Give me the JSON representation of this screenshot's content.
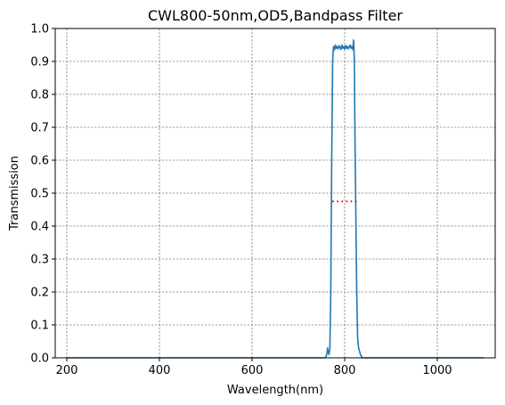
{
  "chart_data": {
    "type": "line",
    "title": "CWL800-50nm,OD5,Bandpass Filter",
    "xlabel": "Wavelength(nm)",
    "ylabel": "Transmission",
    "xlim": [
      175,
      1125
    ],
    "ylim": [
      0,
      1.0
    ],
    "x_ticks": [
      200,
      400,
      600,
      800,
      1000
    ],
    "y_ticks": [
      0.0,
      0.1,
      0.2,
      0.3,
      0.4,
      0.5,
      0.6,
      0.7,
      0.8,
      0.9,
      1.0
    ],
    "x_tick_labels": [
      "200",
      "400",
      "600",
      "800",
      "1000"
    ],
    "y_tick_labels": [
      "0.0",
      "0.1",
      "0.2",
      "0.3",
      "0.4",
      "0.5",
      "0.6",
      "0.7",
      "0.8",
      "0.9",
      "1.0"
    ],
    "grid": true,
    "series": [
      {
        "color": "#1f77b4",
        "style": "solid",
        "x": [
          200,
          400,
          600,
          758,
          760,
          762,
          763,
          764,
          766,
          768,
          770,
          772,
          774,
          775,
          776,
          778,
          780,
          782,
          784,
          786,
          788,
          790,
          792,
          794,
          796,
          798,
          800,
          802,
          804,
          806,
          808,
          810,
          812,
          814,
          816,
          818,
          819,
          820,
          821,
          822,
          824,
          826,
          828,
          830,
          832,
          834,
          836,
          838,
          840,
          842,
          860,
          900,
          1000,
          1100
        ],
        "y": [
          0.0,
          0.0,
          0.0,
          0.0,
          0.005,
          0.015,
          0.03,
          0.02,
          0.01,
          0.03,
          0.2,
          0.6,
          0.9,
          0.93,
          0.945,
          0.935,
          0.95,
          0.94,
          0.945,
          0.938,
          0.948,
          0.942,
          0.936,
          0.95,
          0.94,
          0.945,
          0.937,
          0.948,
          0.94,
          0.946,
          0.938,
          0.944,
          0.95,
          0.94,
          0.945,
          0.935,
          0.965,
          0.94,
          0.9,
          0.7,
          0.45,
          0.2,
          0.06,
          0.03,
          0.02,
          0.01,
          0.005,
          0.0,
          0.0,
          0.0,
          0.0,
          0.0,
          0.0,
          0.0
        ]
      },
      {
        "color": "#ff0000",
        "style": "dotted",
        "x": [
          775,
          825
        ],
        "y": [
          0.475,
          0.475
        ]
      }
    ]
  }
}
